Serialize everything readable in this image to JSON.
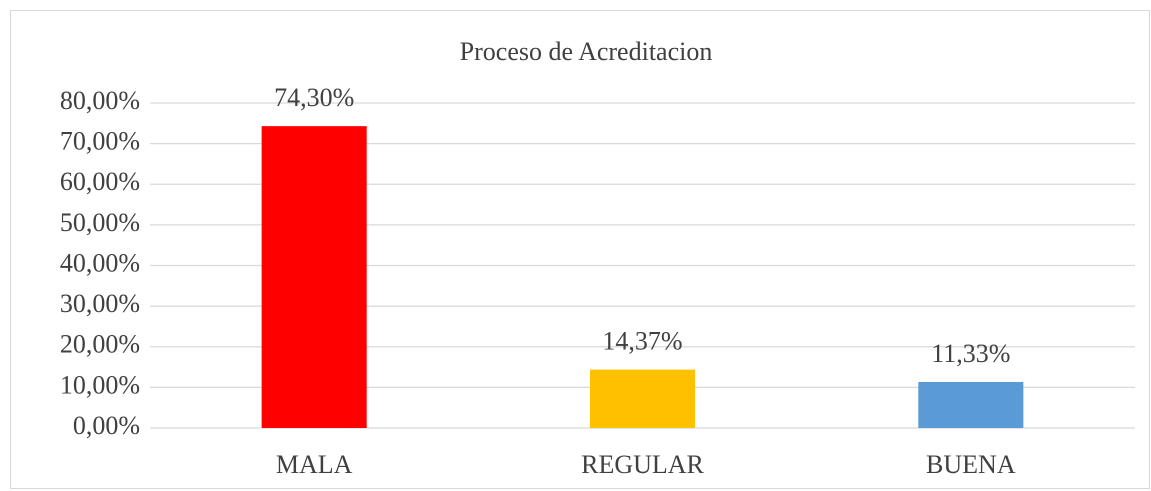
{
  "chart_data": {
    "type": "bar",
    "title": "Proceso de Acreditacion",
    "categories": [
      "MALA",
      "REGULAR",
      "BUENA"
    ],
    "values": [
      74.3,
      14.37,
      11.33
    ],
    "value_labels": [
      "74,30%",
      "14,37%",
      "11,33%"
    ],
    "colors": [
      "#ff0000",
      "#ffc000",
      "#5b9bd5"
    ],
    "ylim": [
      0,
      80
    ],
    "yticks": [
      {
        "value": 0,
        "label": "0,00%"
      },
      {
        "value": 10,
        "label": "10,00%"
      },
      {
        "value": 20,
        "label": "20,00%"
      },
      {
        "value": 30,
        "label": "30,00%"
      },
      {
        "value": 40,
        "label": "40,00%"
      },
      {
        "value": 50,
        "label": "50,00%"
      },
      {
        "value": 60,
        "label": "60,00%"
      },
      {
        "value": 70,
        "label": "70,00%"
      },
      {
        "value": 80,
        "label": "80,00%"
      }
    ],
    "grid": true
  }
}
